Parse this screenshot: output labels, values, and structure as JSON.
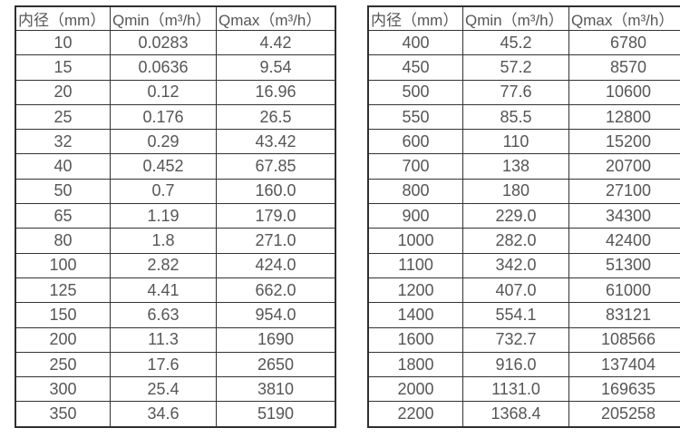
{
  "page": {
    "background_color": "#ffffff",
    "border_color": "#333333",
    "text_color": "#555658"
  },
  "tables": [
    {
      "name": "small-diameter-flow-table",
      "headers": [
        "内径（mm）",
        "Qmin（m³/h）",
        "Qmax（m³/h）"
      ],
      "rows": [
        [
          "10",
          "0.0283",
          "4.42"
        ],
        [
          "15",
          "0.0636",
          "9.54"
        ],
        [
          "20",
          "0.12",
          "16.96"
        ],
        [
          "25",
          "0.176",
          "26.5"
        ],
        [
          "32",
          "0.29",
          "43.42"
        ],
        [
          "40",
          "0.452",
          "67.85"
        ],
        [
          "50",
          "0.7",
          "160.0"
        ],
        [
          "65",
          "1.19",
          "179.0"
        ],
        [
          "80",
          "1.8",
          "271.0"
        ],
        [
          "100",
          "2.82",
          "424.0"
        ],
        [
          "125",
          "4.41",
          "662.0"
        ],
        [
          "150",
          "6.63",
          "954.0"
        ],
        [
          "200",
          "11.3",
          "1690"
        ],
        [
          "250",
          "17.6",
          "2650"
        ],
        [
          "300",
          "25.4",
          "3810"
        ],
        [
          "350",
          "34.6",
          "5190"
        ]
      ]
    },
    {
      "name": "large-diameter-flow-table",
      "headers": [
        "内径（mm）",
        "Qmin（m³/h）",
        "Qmax（m³/h）"
      ],
      "rows": [
        [
          "400",
          "45.2",
          "6780"
        ],
        [
          "450",
          "57.2",
          "8570"
        ],
        [
          "500",
          "77.6",
          "10600"
        ],
        [
          "550",
          "85.5",
          "12800"
        ],
        [
          "600",
          "110",
          "15200"
        ],
        [
          "700",
          "138",
          "20700"
        ],
        [
          "800",
          "180",
          "27100"
        ],
        [
          "900",
          "229.0",
          "34300"
        ],
        [
          "1000",
          "282.0",
          "42400"
        ],
        [
          "1100",
          "342.0",
          "51300"
        ],
        [
          "1200",
          "407.0",
          "61000"
        ],
        [
          "1400",
          "554.1",
          "83121"
        ],
        [
          "1600",
          "732.7",
          "108566"
        ],
        [
          "1800",
          "916.0",
          "137404"
        ],
        [
          "2000",
          "1131.0",
          "169635"
        ],
        [
          "2200",
          "1368.4",
          "205258"
        ]
      ]
    }
  ]
}
